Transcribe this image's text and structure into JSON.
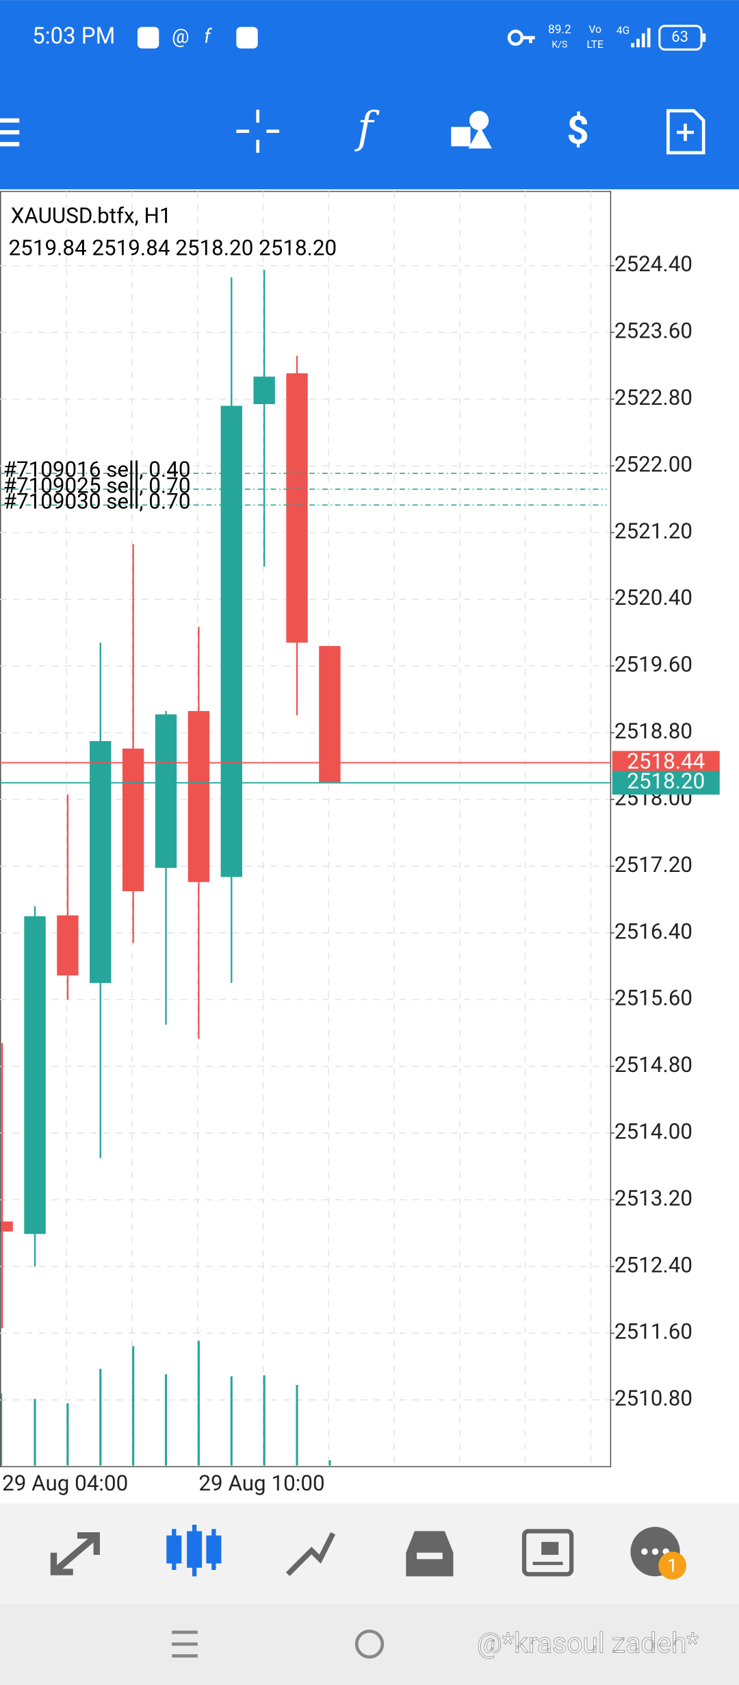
{
  "status_bar": {
    "time": "5:03 PM",
    "speed": "89.2",
    "speed_unit": "K/S",
    "volte_top": "Vo",
    "volte_bottom": "LTE",
    "network": "4G",
    "battery": "63"
  },
  "chart_data": {
    "type": "candlestick",
    "title": "XAUUSD.btfx, H1",
    "ohlc_text": "2519.84 2519.84 2518.20 2518.20",
    "categories": [
      "29 Aug 04:00",
      null,
      null,
      null,
      null,
      null,
      "29 Aug 10:00",
      null,
      null,
      null,
      null
    ],
    "open": [
      2512.94,
      2512.79,
      2516.61,
      2515.8,
      2518.61,
      2517.18,
      2519.06,
      2517.07,
      2522.74,
      2523.11,
      2519.84
    ],
    "high": [
      2515.08,
      2516.72,
      2518.06,
      2519.88,
      2521.06,
      2519.06,
      2520.07,
      2524.26,
      2524.35,
      2523.32,
      2519.84
    ],
    "low": [
      2511.66,
      2512.4,
      2515.6,
      2513.7,
      2516.28,
      2515.3,
      2515.13,
      2515.8,
      2520.79,
      2519.01,
      2518.2
    ],
    "close": [
      2512.82,
      2516.6,
      2515.89,
      2518.7,
      2516.9,
      2519.02,
      2517.01,
      2522.72,
      2523.07,
      2519.88,
      2518.2
    ],
    "volume": [
      68,
      63,
      59,
      91,
      112,
      86,
      117,
      84,
      85,
      76,
      6
    ],
    "up_color": "#26a69a",
    "down_color": "#ef5350",
    "ylim": [
      2510.0,
      2525.29
    ],
    "yticks": [
      {
        "value": 2510.8,
        "label": "2510.80"
      },
      {
        "value": 2511.6,
        "label": "2511.60"
      },
      {
        "value": 2512.4,
        "label": "2512.40"
      },
      {
        "value": 2513.2,
        "label": "2513.20"
      },
      {
        "value": 2514.0,
        "label": "2514.00"
      },
      {
        "value": 2514.8,
        "label": "2514.80"
      },
      {
        "value": 2515.6,
        "label": "2515.60"
      },
      {
        "value": 2516.4,
        "label": "2516.40"
      },
      {
        "value": 2517.2,
        "label": "2517.20"
      },
      {
        "value": 2518.0,
        "label": "2518.00"
      },
      {
        "value": 2518.8,
        "label": "2518.80"
      },
      {
        "value": 2519.6,
        "label": "2519.60"
      },
      {
        "value": 2520.4,
        "label": "2520.40"
      },
      {
        "value": 2521.2,
        "label": "2521.20"
      },
      {
        "value": 2522.0,
        "label": "2522.00"
      },
      {
        "value": 2522.8,
        "label": "2522.80"
      },
      {
        "value": 2523.6,
        "label": "2523.60"
      },
      {
        "value": 2524.4,
        "label": "2524.40"
      }
    ],
    "grid": true,
    "ask": {
      "value": 2518.44,
      "label": "2518.44",
      "color": "#ef5350"
    },
    "bid": {
      "value": 2518.2,
      "label": "2518.20",
      "color": "#26a69a"
    },
    "orders": [
      {
        "label": "#7109016 sell, 0.40",
        "value": 2521.91
      },
      {
        "label": "#7109025 sell, 0.70",
        "value": 2521.72
      },
      {
        "label": "#7109030 sell, 0.70",
        "value": 2521.53
      }
    ]
  },
  "bottom_nav": {
    "chat_badge": "1"
  },
  "watermark": "@*krasoul zadeh*"
}
